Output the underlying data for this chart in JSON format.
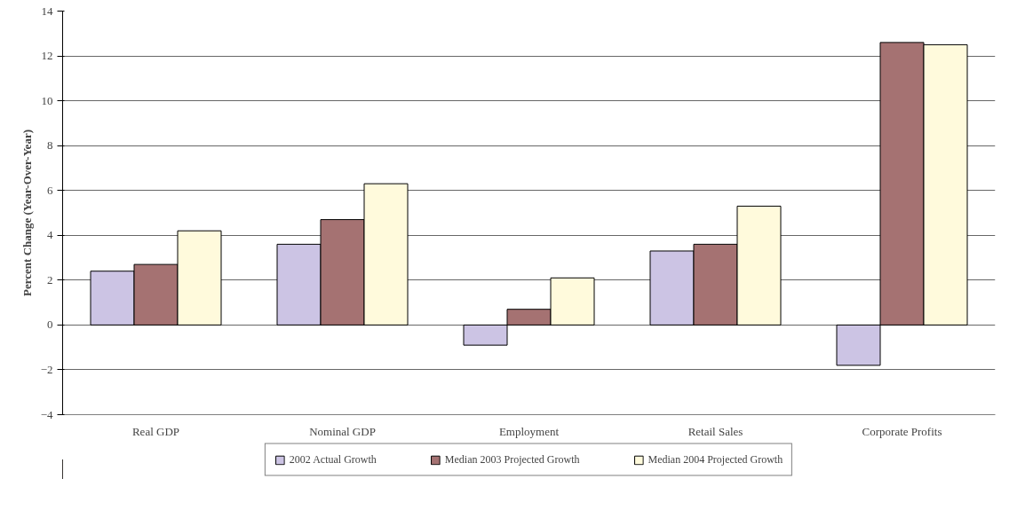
{
  "chart_data": {
    "type": "bar",
    "ylabel": "Percent Change (Year-Over-Year)",
    "categories": [
      "Real GDP",
      "Nominal GDP",
      "Employment",
      "Retail Sales",
      "Corporate Profits"
    ],
    "series": [
      {
        "name": "2002 Actual Growth",
        "color": "#ccc4e4",
        "values": [
          2.4,
          3.6,
          -0.9,
          3.3,
          -1.8
        ]
      },
      {
        "name": "Median 2003 Projected Growth",
        "color": "#a57272",
        "values": [
          2.7,
          4.7,
          0.7,
          3.6,
          12.6
        ]
      },
      {
        "name": "Median 2004 Projected Growth",
        "color": "#fffadc",
        "values": [
          4.2,
          6.3,
          2.1,
          5.3,
          12.5
        ]
      }
    ],
    "ylim": [
      -4,
      14
    ],
    "yticks": [
      -4,
      -2,
      0,
      2,
      4,
      6,
      8,
      10,
      12,
      14
    ],
    "grid": "y",
    "legend": "bottom"
  }
}
